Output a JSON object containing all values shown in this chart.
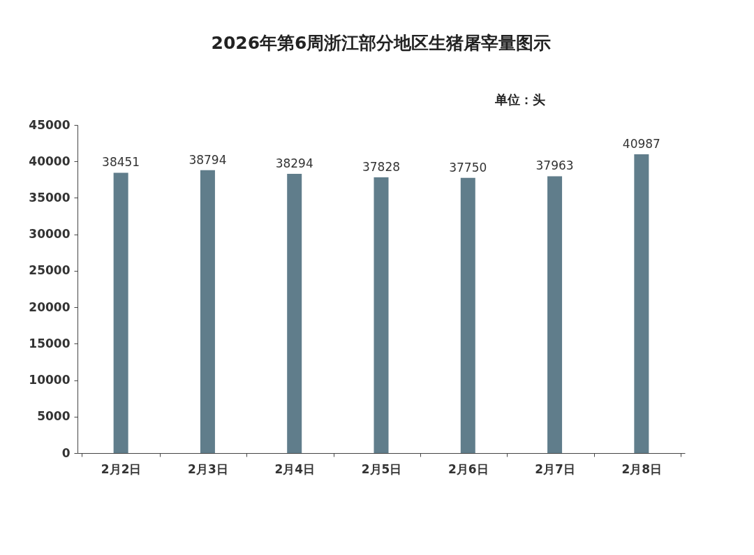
{
  "chart_data": {
    "type": "bar",
    "title": "2026年第6周浙江部分地区生猪屠宰量图示",
    "annotations": [
      "单位：头"
    ],
    "categories": [
      "2月2日",
      "2月3日",
      "2月4日",
      "2月5日",
      "2月6日",
      "2月7日",
      "2月8日"
    ],
    "values": [
      38451,
      38794,
      38294,
      37828,
      37750,
      37963,
      40987
    ],
    "color": "#607d8b",
    "ylim": [
      0,
      45000
    ],
    "yticks": [
      0,
      5000,
      10000,
      15000,
      20000,
      25000,
      30000,
      35000,
      40000,
      45000
    ],
    "data_labels": true
  }
}
